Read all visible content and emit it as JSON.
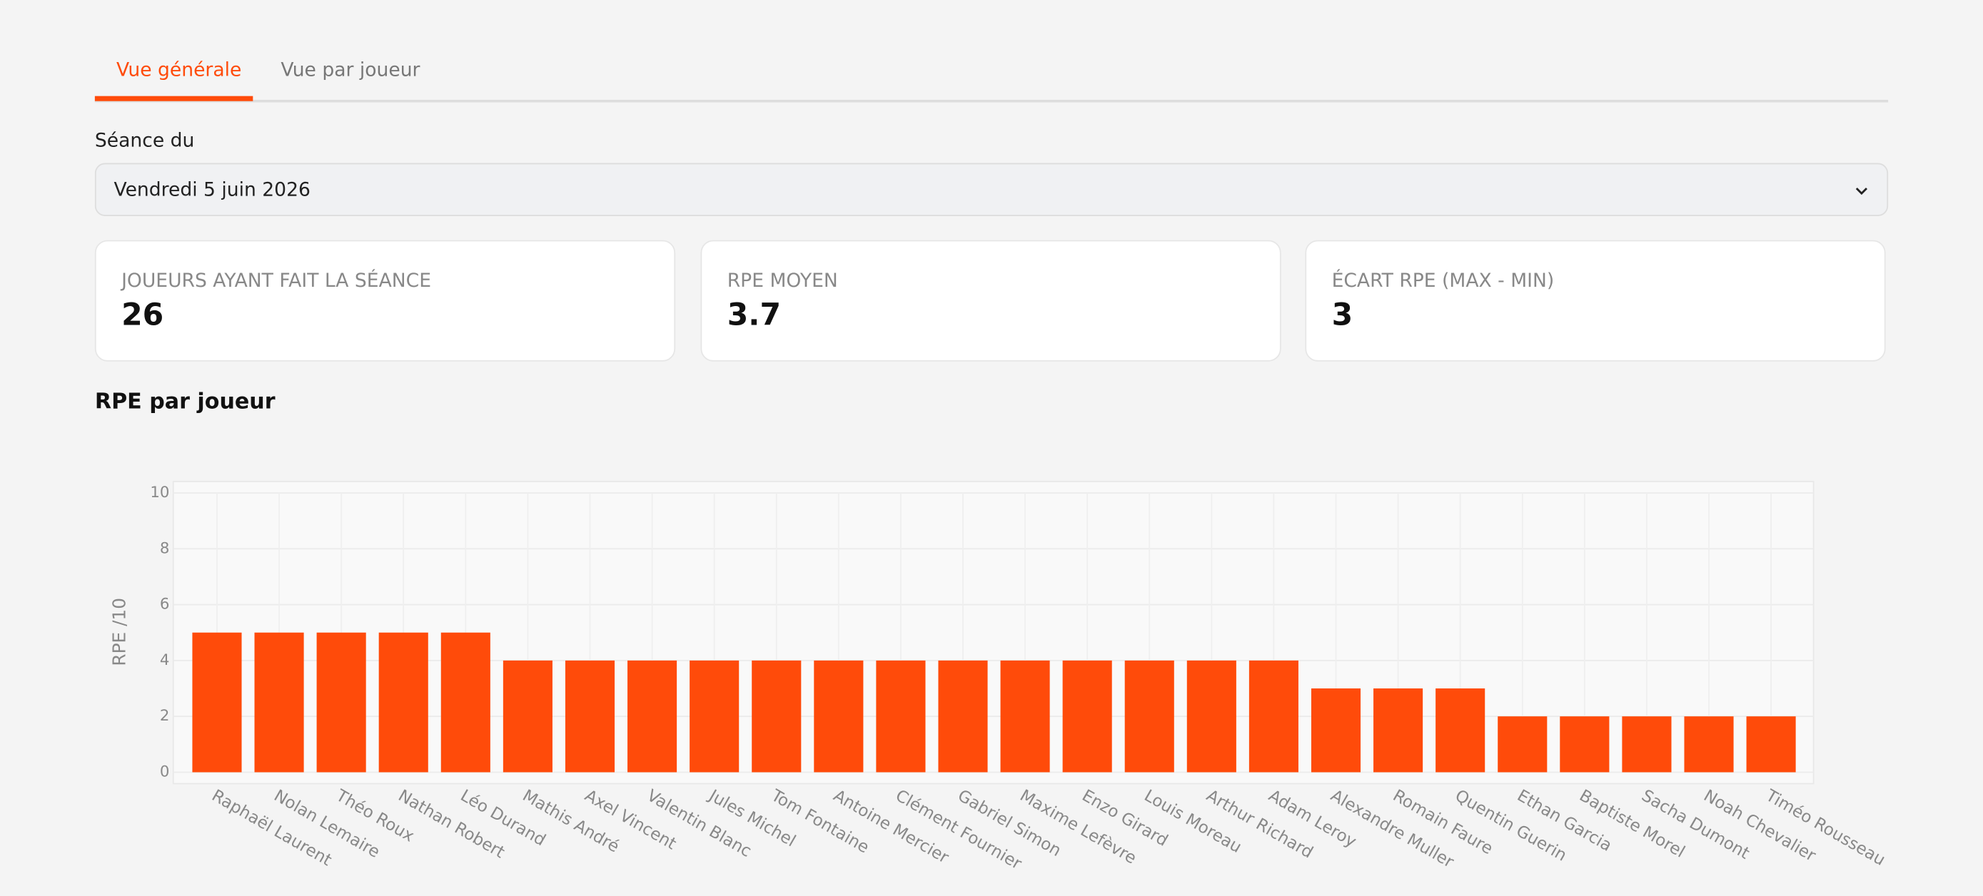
{
  "tabs": [
    "Vue générale",
    "Vue par joueur"
  ],
  "session": {
    "label": "Séance du",
    "value": "Vendredi 5 juin 2026"
  },
  "cards": [
    {
      "title": "JOUEURS AYANT FAIT LA SÉANCE",
      "value": 26
    },
    {
      "title": "RPE MOYEN",
      "value": 3.7
    },
    {
      "title": "ÉCART RPE (MAX - MIN)",
      "value": 3
    }
  ],
  "chart_data": {
    "type": "bar",
    "title": "RPE par joueur",
    "y_label": "RPE /10",
    "color": "#ff4b0a",
    "grid": true,
    "categories": [
      "Raphaël Laurent",
      "Nolan Lemaire",
      "Théo Roux",
      "Nathan Robert",
      "Léo Durand",
      "Mathis André",
      "Axel Vincent",
      "Valentin Blanc",
      "Jules Michel",
      "Tom Fontaine",
      "Antoine Mercier",
      "Clément Fournier",
      "Gabriel Simon",
      "Maxime Lefèvre",
      "Enzo Girard",
      "Louis Moreau",
      "Arthur Richard",
      "Adam Leroy",
      "Alexandre Muller",
      "Romain Faure",
      "Quentin Guerin",
      "Ethan Garcia",
      "Baptiste Morel",
      "Sacha Dumont",
      "Noah Chevalier",
      "Timéo Rousseau"
    ],
    "values": [
      5,
      5,
      5,
      5,
      5,
      4,
      4,
      4,
      4,
      4,
      4,
      4,
      4,
      4,
      4,
      4,
      4,
      4,
      3,
      3,
      3,
      2,
      2,
      2,
      2,
      2
    ],
    "ylim": [
      0,
      10
    ],
    "yticks": [
      0,
      2,
      4,
      6,
      8,
      10
    ]
  }
}
